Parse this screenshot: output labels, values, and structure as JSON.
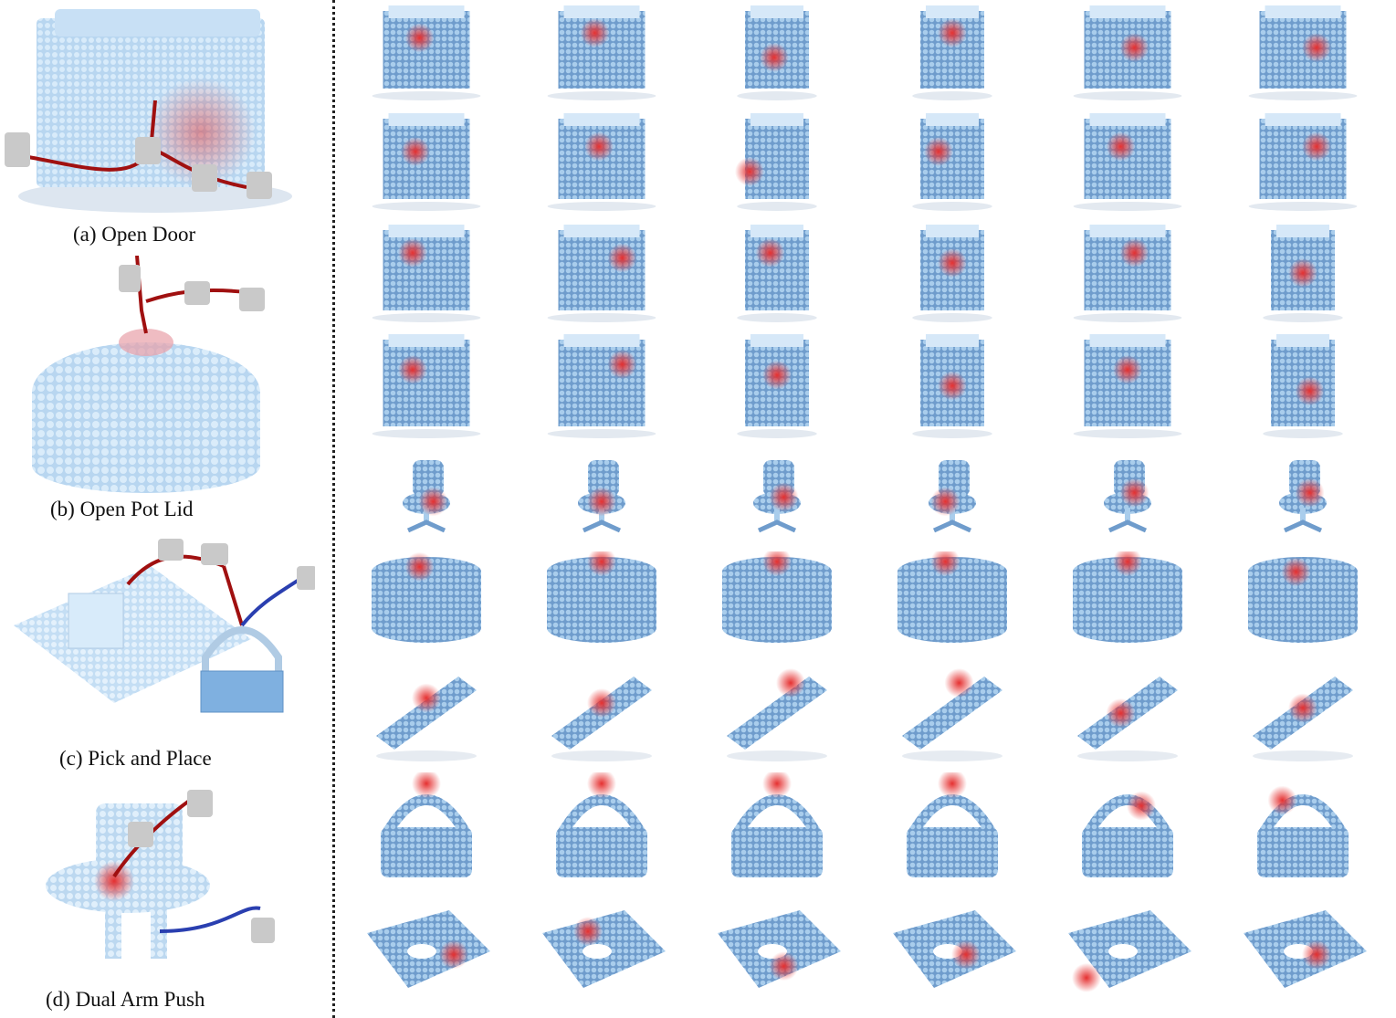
{
  "tasks": [
    {
      "caption": "(a) Open Door",
      "shape": "cabinet"
    },
    {
      "caption": "(b) Open Pot Lid",
      "shape": "pot"
    },
    {
      "caption": "(c) Pick and Place",
      "shape": "tray"
    },
    {
      "caption": "(d) Dual Arm Push",
      "shape": "chair"
    }
  ],
  "grid_rows": [
    {
      "kind": "cabinet-door",
      "hot": [
        [
          0.45,
          0.35
        ],
        [
          0.45,
          0.3
        ],
        [
          0.48,
          0.55
        ],
        [
          0.5,
          0.3
        ],
        [
          0.55,
          0.45
        ],
        [
          0.6,
          0.45
        ]
      ]
    },
    {
      "kind": "cabinet-door",
      "hot": [
        [
          0.42,
          0.4
        ],
        [
          0.48,
          0.35
        ],
        [
          0.3,
          0.6
        ],
        [
          0.4,
          0.4
        ],
        [
          0.45,
          0.35
        ],
        [
          0.6,
          0.35
        ]
      ]
    },
    {
      "kind": "cabinet-drawer",
      "hot": [
        [
          0.4,
          0.3
        ],
        [
          0.65,
          0.35
        ],
        [
          0.45,
          0.3
        ],
        [
          0.5,
          0.4
        ],
        [
          0.55,
          0.3
        ],
        [
          0.5,
          0.5
        ]
      ]
    },
    {
      "kind": "cabinet-drawer",
      "hot": [
        [
          0.4,
          0.35
        ],
        [
          0.65,
          0.3
        ],
        [
          0.5,
          0.4
        ],
        [
          0.5,
          0.5
        ],
        [
          0.5,
          0.35
        ],
        [
          0.55,
          0.55
        ]
      ]
    },
    {
      "kind": "chair",
      "hot": [
        [
          0.55,
          0.55
        ],
        [
          0.5,
          0.55
        ],
        [
          0.55,
          0.5
        ],
        [
          0.45,
          0.55
        ],
        [
          0.55,
          0.45
        ],
        [
          0.55,
          0.45
        ]
      ]
    },
    {
      "kind": "pot",
      "hot": [
        [
          0.45,
          0.15
        ],
        [
          0.5,
          0.1
        ],
        [
          0.5,
          0.1
        ],
        [
          0.45,
          0.1
        ],
        [
          0.5,
          0.1
        ],
        [
          0.45,
          0.2
        ]
      ]
    },
    {
      "kind": "stapler",
      "hot": [
        [
          0.5,
          0.35
        ],
        [
          0.5,
          0.4
        ],
        [
          0.6,
          0.2
        ],
        [
          0.55,
          0.2
        ],
        [
          0.45,
          0.5
        ],
        [
          0.5,
          0.45
        ]
      ]
    },
    {
      "kind": "handle",
      "hot": [
        [
          0.5,
          0.1
        ],
        [
          0.5,
          0.1
        ],
        [
          0.5,
          0.1
        ],
        [
          0.5,
          0.1
        ],
        [
          0.6,
          0.3
        ],
        [
          0.35,
          0.25
        ]
      ]
    },
    {
      "kind": "flat",
      "hot": [
        [
          0.7,
          0.5
        ],
        [
          0.4,
          0.3
        ],
        [
          0.55,
          0.6
        ],
        [
          0.6,
          0.5
        ],
        [
          0.2,
          0.7
        ],
        [
          0.6,
          0.5
        ]
      ]
    }
  ],
  "colors": {
    "point": "#a9cdec",
    "point_dark": "#6f9ccc",
    "hot": "#e53030",
    "arrow": "#a01010",
    "arrow2": "#2a3fb0",
    "gripper": "#c9c9c9"
  }
}
